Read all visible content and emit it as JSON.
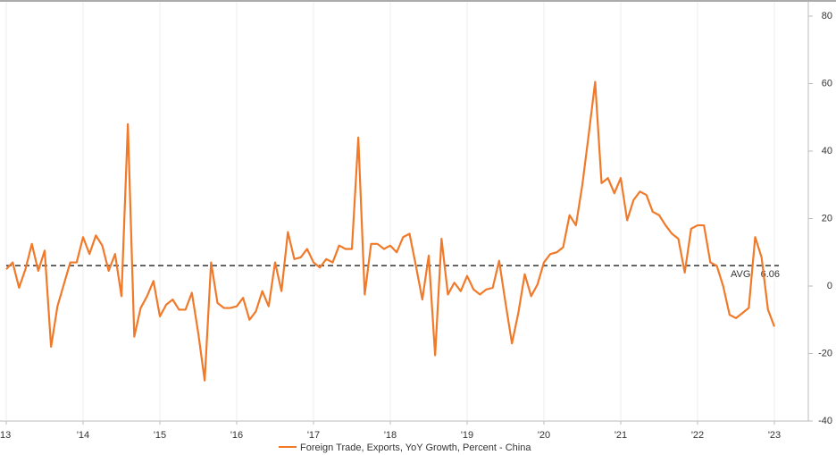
{
  "chart_data": {
    "type": "line",
    "categories": [
      "13",
      null,
      null,
      null,
      null,
      null,
      null,
      null,
      null,
      null,
      null,
      null,
      "'14",
      null,
      null,
      null,
      null,
      null,
      null,
      null,
      null,
      null,
      null,
      null,
      "'15",
      null,
      null,
      null,
      null,
      null,
      null,
      null,
      null,
      null,
      null,
      null,
      "'16",
      null,
      null,
      null,
      null,
      null,
      null,
      null,
      null,
      null,
      null,
      null,
      "'17",
      null,
      null,
      null,
      null,
      null,
      null,
      null,
      null,
      null,
      null,
      null,
      "'18",
      null,
      null,
      null,
      null,
      null,
      null,
      null,
      null,
      null,
      null,
      null,
      "'19",
      null,
      null,
      null,
      null,
      null,
      null,
      null,
      null,
      null,
      null,
      null,
      "'20",
      null,
      null,
      null,
      null,
      null,
      null,
      null,
      null,
      null,
      null,
      null,
      "'21",
      null,
      null,
      null,
      null,
      null,
      null,
      null,
      null,
      null,
      null,
      null,
      "'22",
      null,
      null,
      null,
      null,
      null,
      null,
      null,
      null,
      null,
      null,
      null,
      "'23"
    ],
    "series": [
      {
        "name": "Foreign Trade, Exports, YoY Growth, Percent - China",
        "color": "#f07a2a",
        "values": [
          5,
          7,
          -0.5,
          5,
          12.5,
          4.5,
          10.5,
          -18,
          -6,
          0.5,
          7,
          7,
          14.5,
          9.5,
          15,
          12,
          4.5,
          9.5,
          -3,
          48,
          -15,
          -6.5,
          -3,
          1.5,
          -9,
          -5.5,
          -4,
          -7,
          -7,
          -2,
          -14,
          -28,
          7,
          -5,
          -6.5,
          -6.5,
          -6,
          -3.5,
          -10,
          -7.5,
          -1.5,
          -6,
          7,
          -1.5,
          16,
          8,
          8.5,
          11,
          7,
          5.5,
          8,
          7,
          12,
          11,
          11,
          44,
          -2.5,
          12.5,
          12.5,
          11,
          12,
          10,
          14.5,
          15.5,
          6,
          -4,
          9,
          -20.5,
          14,
          -2.5,
          1,
          -1.5,
          3,
          -1,
          -2.5,
          -1,
          -0.5,
          7.5,
          -5,
          -17,
          -8,
          3.5,
          -3,
          0.5,
          7,
          9.5,
          10,
          11.5,
          21,
          18,
          30,
          45,
          60.5,
          30.5,
          32,
          27.5,
          32,
          19.5,
          25.5,
          28,
          27,
          22,
          21,
          18,
          15.5,
          14,
          4,
          17,
          18,
          18,
          7,
          6,
          0,
          -8.5,
          -9.5,
          -8,
          -6.5,
          14.5,
          8.5,
          -7,
          -12
        ]
      }
    ],
    "average": {
      "label": "AVG",
      "value": 6.06
    },
    "ylim": [
      -40,
      80
    ],
    "yticks": [
      80,
      60,
      40,
      20,
      0,
      -20,
      -40
    ]
  }
}
